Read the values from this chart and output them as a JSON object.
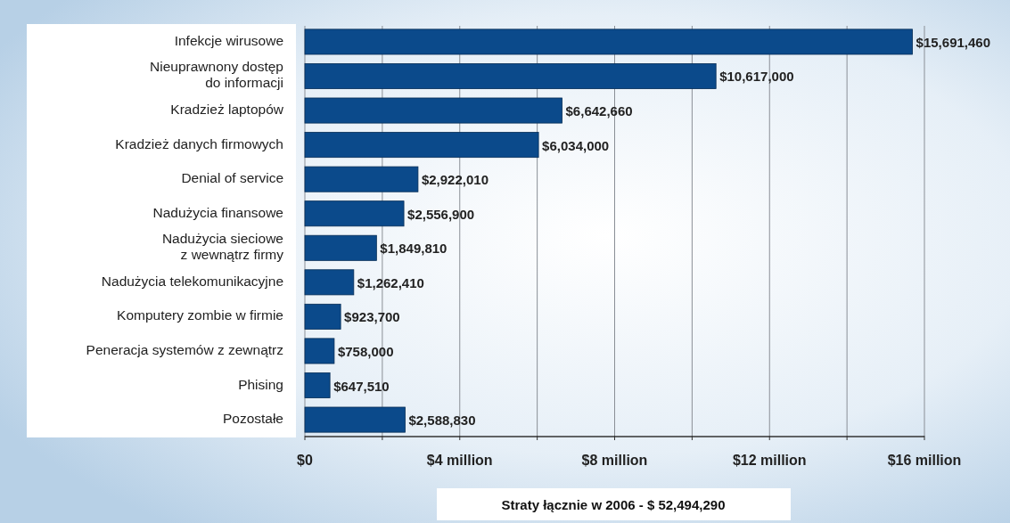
{
  "chart_data": {
    "type": "bar",
    "orientation": "horizontal",
    "categories": [
      "Infekcje wirusowe",
      "Nieuprawnony dostęp\ndo informacji",
      "Kradzież laptopów",
      "Kradzież danych firmowych",
      "Denial of service",
      "Nadużycia finansowe",
      "Nadużycia sieciowe\nz wewnątrz firmy",
      "Nadużycia telekomunikacyjne",
      "Komputery zombie w firmie",
      "Peneracja systemów z zewnątrz",
      "Phising",
      "Pozostałe"
    ],
    "values": [
      15691460,
      10617000,
      6642660,
      6034000,
      2922010,
      2556900,
      1849810,
      1262410,
      923700,
      758000,
      647510,
      2588830
    ],
    "value_labels": [
      "$15,691,460",
      "$10,617,000",
      "$6,642,660",
      "$6,034,000",
      "$2,922,010",
      "$2,556,900",
      "$1,849,810",
      "$1,262,410",
      "$923,700",
      "$758,000",
      "$647,510",
      "$2,588,830"
    ],
    "color": "#0b4a8b",
    "xlim": [
      0,
      16000000
    ],
    "xticks": [
      {
        "value": 0,
        "label": "$0"
      },
      {
        "value": 2000000,
        "label": null
      },
      {
        "value": 4000000,
        "label": "$4 million"
      },
      {
        "value": 6000000,
        "label": null
      },
      {
        "value": 8000000,
        "label": "$8 million"
      },
      {
        "value": 10000000,
        "label": null
      },
      {
        "value": 12000000,
        "label": "$12 million"
      },
      {
        "value": 14000000,
        "label": null
      },
      {
        "value": 16000000,
        "label": "$16 million"
      }
    ],
    "grid": "x",
    "annotations": [
      "Straty łącznie w 2006 - $ 52,494,290"
    ]
  }
}
